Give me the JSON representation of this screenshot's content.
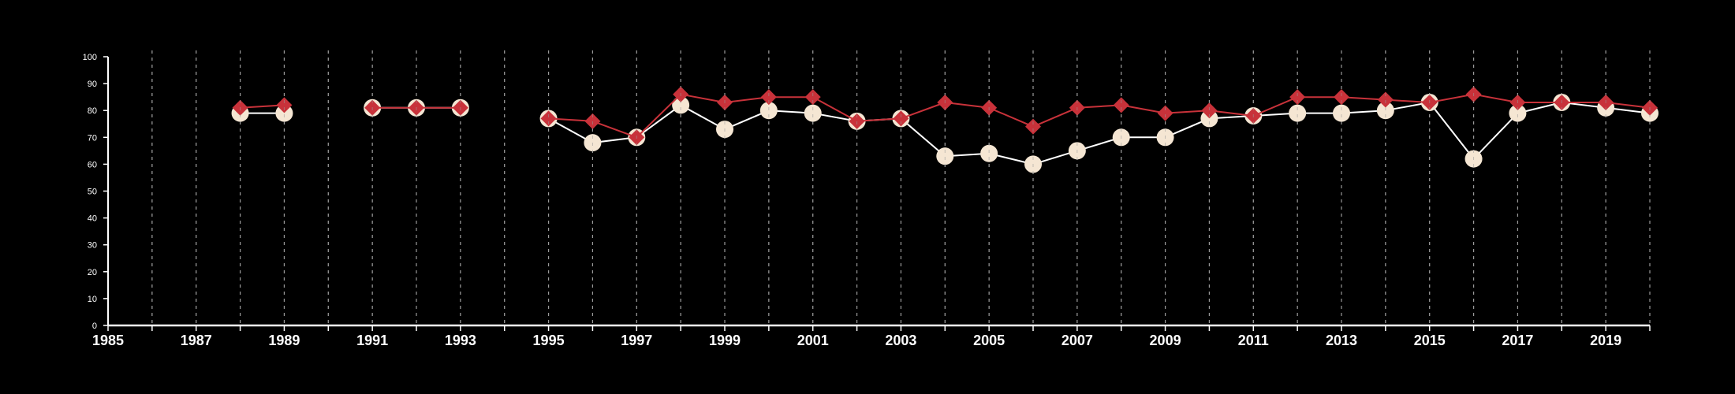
{
  "colors": {
    "background": "#000000",
    "axis": "#ffffff",
    "gridline": "#9a9a9a",
    "series_a_line": "#ffffff",
    "series_a_marker": "#f5e6d3",
    "series_b_line": "#c8323a",
    "series_b_marker": "#c8323a"
  },
  "chart_data": {
    "type": "line",
    "title": "",
    "xlabel": "",
    "ylabel": "",
    "xlim": [
      1985,
      2020
    ],
    "ylim": [
      0,
      100
    ],
    "y_ticks": [
      0,
      10,
      20,
      30,
      40,
      50,
      60,
      70,
      80,
      90,
      100
    ],
    "x_tick_labels": [
      "1985",
      "1987",
      "1989",
      "1991",
      "1993",
      "1995",
      "1997",
      "1999",
      "2001",
      "2003",
      "2005",
      "2007",
      "2009",
      "2011",
      "2013",
      "2015",
      "2017",
      "2019"
    ],
    "gridlines": "vertical-dashed-yearly",
    "legend": "none",
    "series": [
      {
        "marker": "circle",
        "points": [
          [
            1988,
            79
          ],
          [
            1989,
            79
          ],
          null,
          [
            1991,
            81
          ],
          [
            1992,
            81
          ],
          [
            1993,
            81
          ],
          null,
          [
            1995,
            77
          ],
          [
            1996,
            68
          ],
          [
            1997,
            70
          ],
          [
            1998,
            82
          ],
          [
            1999,
            73
          ],
          [
            2000,
            80
          ],
          [
            2001,
            79
          ],
          [
            2002,
            76
          ],
          [
            2003,
            77
          ],
          [
            2004,
            63
          ],
          [
            2005,
            64
          ],
          [
            2006,
            60
          ],
          [
            2007,
            65
          ],
          [
            2008,
            70
          ],
          [
            2009,
            70
          ],
          [
            2010,
            77
          ],
          [
            2011,
            78
          ],
          [
            2012,
            79
          ],
          [
            2013,
            79
          ],
          [
            2014,
            80
          ],
          [
            2015,
            83
          ],
          [
            2016,
            62
          ],
          [
            2017,
            79
          ],
          [
            2018,
            83
          ],
          [
            2019,
            81
          ],
          [
            2020,
            79
          ]
        ]
      },
      {
        "marker": "diamond",
        "points": [
          [
            1988,
            81
          ],
          [
            1989,
            82
          ],
          null,
          [
            1991,
            81
          ],
          [
            1992,
            81
          ],
          [
            1993,
            81
          ],
          null,
          [
            1995,
            77
          ],
          [
            1996,
            76
          ],
          [
            1997,
            70
          ],
          [
            1998,
            86
          ],
          [
            1999,
            83
          ],
          [
            2000,
            85
          ],
          [
            2001,
            85
          ],
          [
            2002,
            76
          ],
          [
            2003,
            77
          ],
          [
            2004,
            83
          ],
          [
            2005,
            81
          ],
          [
            2006,
            74
          ],
          [
            2007,
            81
          ],
          [
            2008,
            82
          ],
          [
            2009,
            79
          ],
          [
            2010,
            80
          ],
          [
            2011,
            78
          ],
          [
            2012,
            85
          ],
          [
            2013,
            85
          ],
          [
            2014,
            84
          ],
          [
            2015,
            83
          ],
          [
            2016,
            86
          ],
          [
            2017,
            83
          ],
          [
            2018,
            83
          ],
          [
            2019,
            83
          ],
          [
            2020,
            81
          ]
        ]
      }
    ]
  }
}
